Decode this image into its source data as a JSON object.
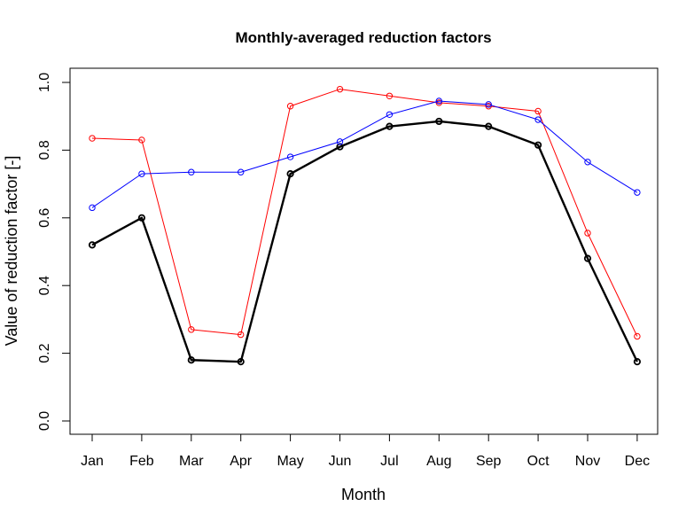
{
  "chart_data": {
    "type": "line",
    "title": "Monthly-averaged reduction factors",
    "xlabel": "Month",
    "ylabel": "Value of reduction factor [-]",
    "categories": [
      "Jan",
      "Feb",
      "Mar",
      "Apr",
      "May",
      "Jun",
      "Jul",
      "Aug",
      "Sep",
      "Oct",
      "Nov",
      "Dec"
    ],
    "ylim": [
      0,
      1
    ],
    "yticks": [
      "0.0",
      "0.2",
      "0.4",
      "0.6",
      "0.8",
      "1.0"
    ],
    "grid": false,
    "legend": "none",
    "series": [
      {
        "color": "#000000",
        "line_weight": "thick",
        "marker": "open-circle",
        "values": [
          0.52,
          0.6,
          0.18,
          0.175,
          0.73,
          0.81,
          0.87,
          0.885,
          0.87,
          0.815,
          0.48,
          0.175
        ]
      },
      {
        "color": "#ff0000",
        "line_weight": "thin",
        "marker": "open-circle",
        "values": [
          0.835,
          0.83,
          0.27,
          0.255,
          0.93,
          0.98,
          0.96,
          0.94,
          0.93,
          0.915,
          0.555,
          0.25
        ]
      },
      {
        "color": "#0000ff",
        "line_weight": "thin",
        "marker": "open-circle",
        "values": [
          0.63,
          0.73,
          0.735,
          0.735,
          0.78,
          0.825,
          0.905,
          0.945,
          0.935,
          0.89,
          0.765,
          0.675
        ]
      }
    ]
  }
}
